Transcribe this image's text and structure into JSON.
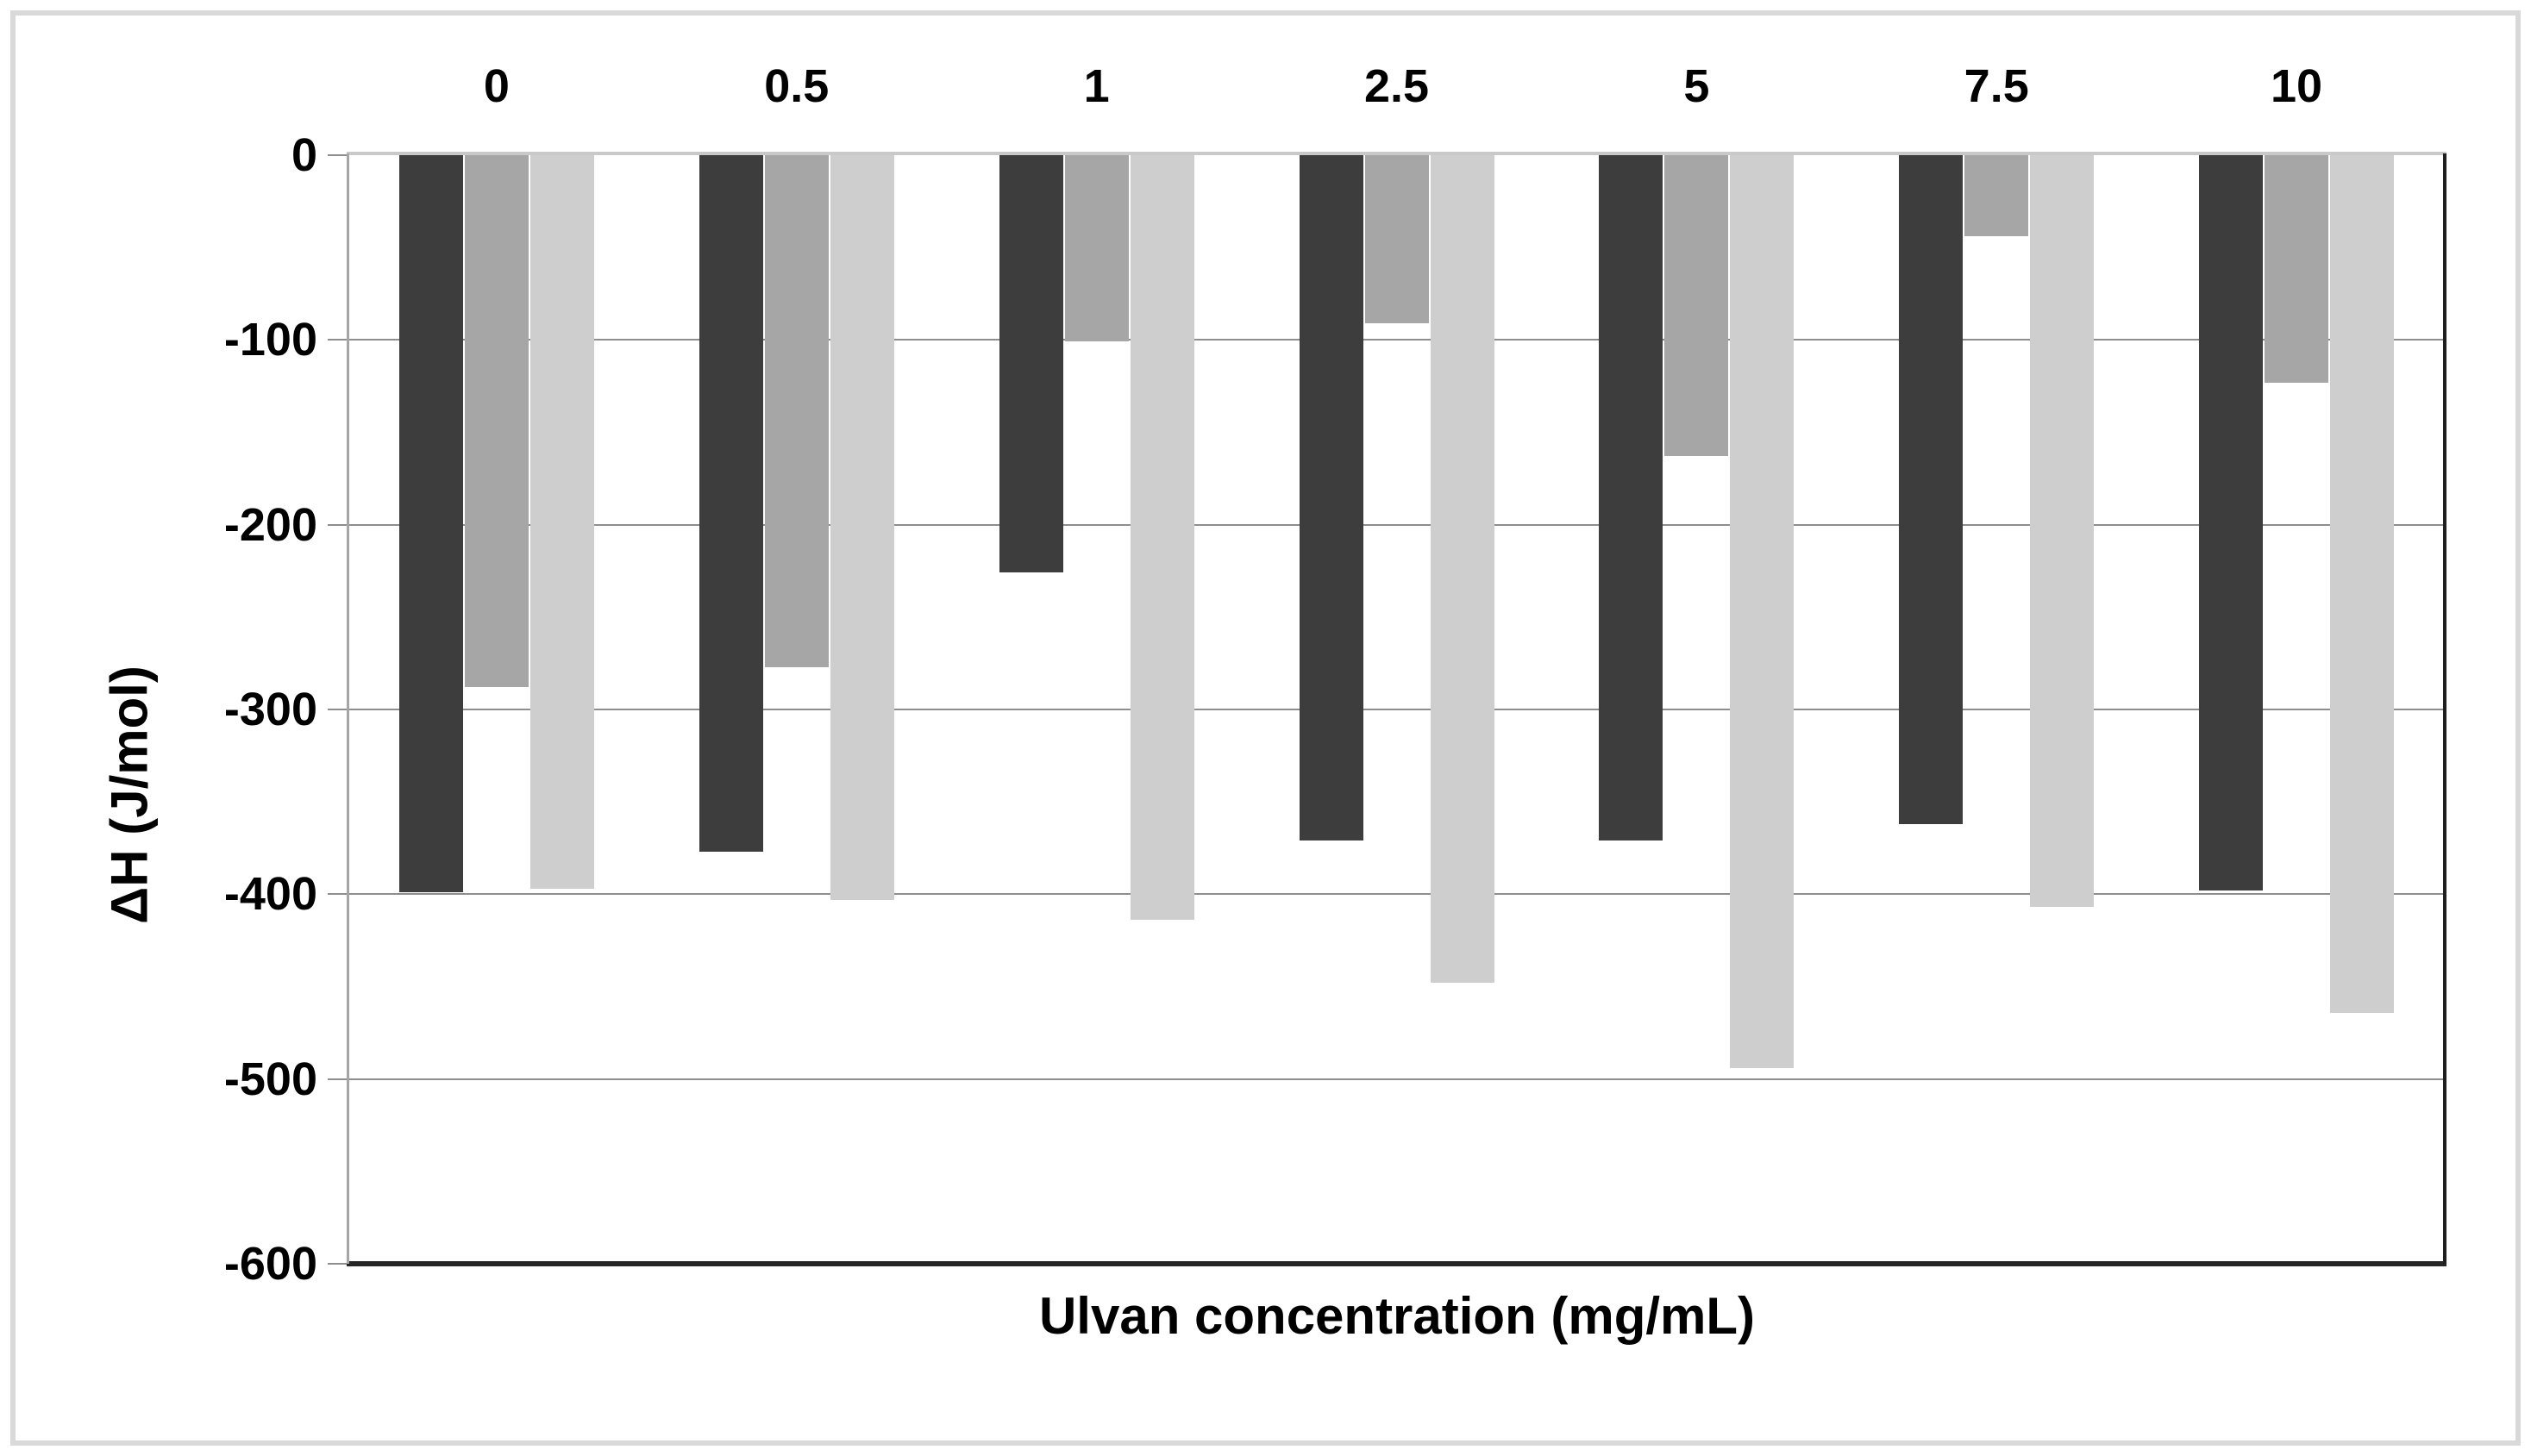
{
  "chart_data": {
    "type": "bar",
    "title": "",
    "categories": [
      "0",
      "0.5",
      "1",
      "2.5",
      "5",
      "7.5",
      "10"
    ],
    "series": [
      {
        "name": "dark-gray-series",
        "color": "#3d3d3d",
        "values": [
          -399,
          -377,
          -226,
          -371,
          -371,
          -362,
          -398
        ]
      },
      {
        "name": "medium-gray-series",
        "color": "#a6a6a6",
        "values": [
          -288,
          -277,
          -101,
          -91,
          -163,
          -44,
          -123
        ]
      },
      {
        "name": "light-gray-series",
        "color": "#cecece",
        "values": [
          -397,
          -403,
          -414,
          -448,
          -494,
          -407,
          -464
        ]
      }
    ],
    "xlabel": "Ulvan concentration (mg/mL)",
    "ylabel": "ΔH (J/mol)",
    "ylim": [
      0,
      -600
    ],
    "ytick_interval": 100,
    "yticks": [
      "0",
      "-100",
      "-200",
      "-300",
      "-400",
      "-500",
      "-600"
    ],
    "grid": "horizontal",
    "legend": "none",
    "bar_direction": "down-from-zero",
    "x_labels_position": "top"
  },
  "styles": {
    "background": "#ffffff",
    "figure_border": "#d9d9d9",
    "gridline": "#8e8e8e",
    "zero_line": "#c9c9c9",
    "left_axis_line": "#a6a6a6",
    "right_border": "#1f1f1f",
    "bottom_axis": "#262626",
    "text_color": "#000000"
  }
}
